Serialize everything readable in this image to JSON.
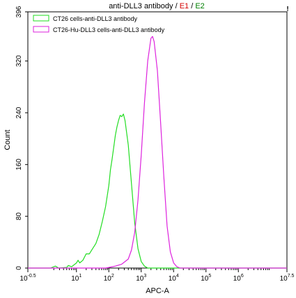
{
  "chart_data": {
    "type": "line",
    "title_parts": [
      {
        "text": "anti-DLL3 antibody",
        "color": "#000000"
      },
      {
        "text": " / ",
        "color": "#000000"
      },
      {
        "text": "E1",
        "color": "#d40000"
      },
      {
        "text": " / ",
        "color": "#000000"
      },
      {
        "text": "E2",
        "color": "#008000"
      }
    ],
    "xlabel": "APC-A",
    "ylabel": "Count",
    "x_scale": "log",
    "xlim": [
      -0.5,
      7.5
    ],
    "ylim": [
      0,
      396
    ],
    "x_ticks": [
      {
        "pos": -0.5,
        "base": "10",
        "exp": "-0.5"
      },
      {
        "pos": 1,
        "base": "10",
        "exp": "1"
      },
      {
        "pos": 2,
        "base": "10",
        "exp": "2"
      },
      {
        "pos": 3,
        "base": "10",
        "exp": "3"
      },
      {
        "pos": 4,
        "base": "10",
        "exp": "4"
      },
      {
        "pos": 5,
        "base": "10",
        "exp": "5"
      },
      {
        "pos": 6,
        "base": "10",
        "exp": "6"
      },
      {
        "pos": 7.5,
        "base": "10",
        "exp": "7.5"
      }
    ],
    "y_ticks": [
      0,
      80,
      160,
      240,
      320,
      396
    ],
    "legend_position": "top-left",
    "series": [
      {
        "name": "CT26 cells-anti-DLL3 antibody",
        "color": "#22dd22",
        "points": [
          [
            -0.5,
            0
          ],
          [
            0.2,
            0
          ],
          [
            0.35,
            3
          ],
          [
            0.45,
            0
          ],
          [
            0.7,
            1
          ],
          [
            0.75,
            4
          ],
          [
            0.85,
            2
          ],
          [
            1.0,
            8
          ],
          [
            1.05,
            12
          ],
          [
            1.1,
            8
          ],
          [
            1.2,
            12
          ],
          [
            1.3,
            22
          ],
          [
            1.4,
            22
          ],
          [
            1.5,
            30
          ],
          [
            1.6,
            38
          ],
          [
            1.7,
            52
          ],
          [
            1.8,
            72
          ],
          [
            1.9,
            95
          ],
          [
            2.0,
            128
          ],
          [
            2.05,
            152
          ],
          [
            2.1,
            168
          ],
          [
            2.15,
            186
          ],
          [
            2.2,
            205
          ],
          [
            2.25,
            218
          ],
          [
            2.3,
            228
          ],
          [
            2.35,
            236
          ],
          [
            2.4,
            234
          ],
          [
            2.45,
            238
          ],
          [
            2.5,
            228
          ],
          [
            2.6,
            190
          ],
          [
            2.7,
            130
          ],
          [
            2.8,
            70
          ],
          [
            2.9,
            30
          ],
          [
            3.0,
            10
          ],
          [
            3.1,
            3
          ],
          [
            3.2,
            0
          ],
          [
            7.5,
            0
          ]
        ]
      },
      {
        "name": "CT26-Hu-DLL3 cells-anti-DLL3 antibody",
        "color": "#dd22dd",
        "points": [
          [
            -0.5,
            0
          ],
          [
            1.9,
            0
          ],
          [
            2.0,
            1
          ],
          [
            2.2,
            3
          ],
          [
            2.4,
            6
          ],
          [
            2.6,
            14
          ],
          [
            2.7,
            28
          ],
          [
            2.8,
            55
          ],
          [
            2.9,
            105
          ],
          [
            3.0,
            175
          ],
          [
            3.1,
            255
          ],
          [
            3.2,
            320
          ],
          [
            3.3,
            355
          ],
          [
            3.35,
            358
          ],
          [
            3.4,
            350
          ],
          [
            3.5,
            305
          ],
          [
            3.6,
            225
          ],
          [
            3.7,
            140
          ],
          [
            3.8,
            65
          ],
          [
            3.9,
            25
          ],
          [
            4.0,
            8
          ],
          [
            4.1,
            2
          ],
          [
            4.2,
            0
          ],
          [
            7.5,
            0
          ]
        ]
      }
    ]
  }
}
